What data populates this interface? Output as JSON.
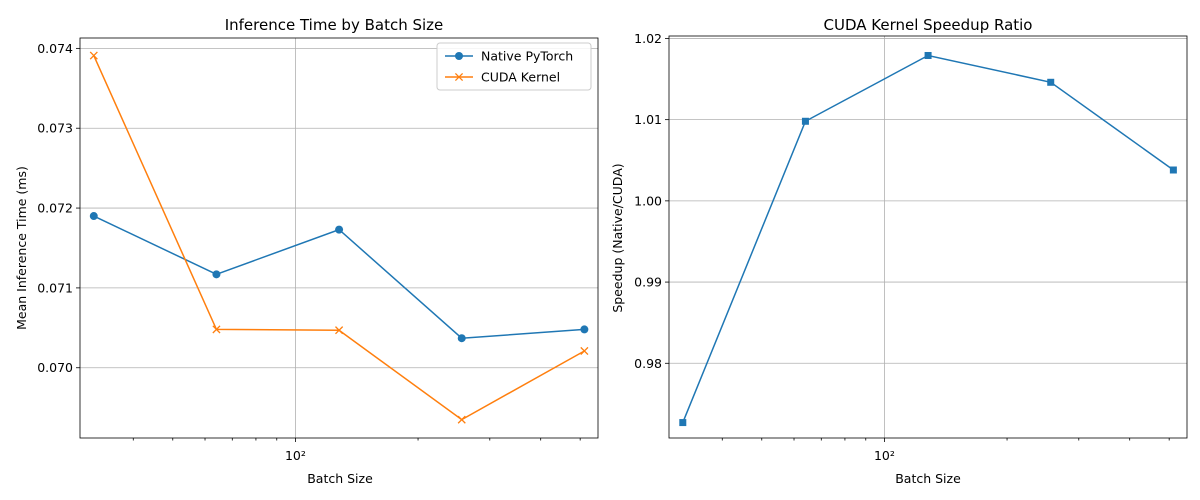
{
  "chart_data": [
    {
      "type": "line",
      "title": "Inference Time by Batch Size",
      "xlabel": "Batch Size",
      "ylabel": "Mean Inference Time (ms)",
      "xscale": "log",
      "x": [
        32,
        64,
        128,
        256,
        512
      ],
      "xlim": [
        29.6,
        553
      ],
      "ylim": [
        0.06912,
        0.07413
      ],
      "yticks": [
        "0.070",
        "0.071",
        "0.072",
        "0.073",
        "0.074"
      ],
      "xtick_major": "10²",
      "grid": true,
      "legend": "top-right",
      "series": [
        {
          "name": "Native PyTorch",
          "color": "#1f77b4",
          "marker": "circle",
          "values": [
            0.0719,
            0.07117,
            0.07173,
            0.07037,
            0.07048
          ]
        },
        {
          "name": "CUDA Kernel",
          "color": "#ff7f0e",
          "marker": "x",
          "values": [
            0.07391,
            0.07048,
            0.07047,
            0.06935,
            0.07021
          ]
        }
      ]
    },
    {
      "type": "line",
      "title": "CUDA Kernel Speedup Ratio",
      "xlabel": "Batch Size",
      "ylabel": "Speedup (Native/CUDA)",
      "xscale": "log",
      "x": [
        32,
        64,
        128,
        256,
        512
      ],
      "xlim": [
        29.6,
        553
      ],
      "ylim": [
        0.9708,
        1.0203
      ],
      "yticks": [
        "0.98",
        "0.99",
        "1.00",
        "1.01",
        "1.02"
      ],
      "xtick_major": "10²",
      "grid": true,
      "series": [
        {
          "color": "#1f77b4",
          "marker": "square",
          "values": [
            0.9727,
            1.0098,
            1.0179,
            1.0146,
            1.0038
          ]
        }
      ]
    }
  ]
}
